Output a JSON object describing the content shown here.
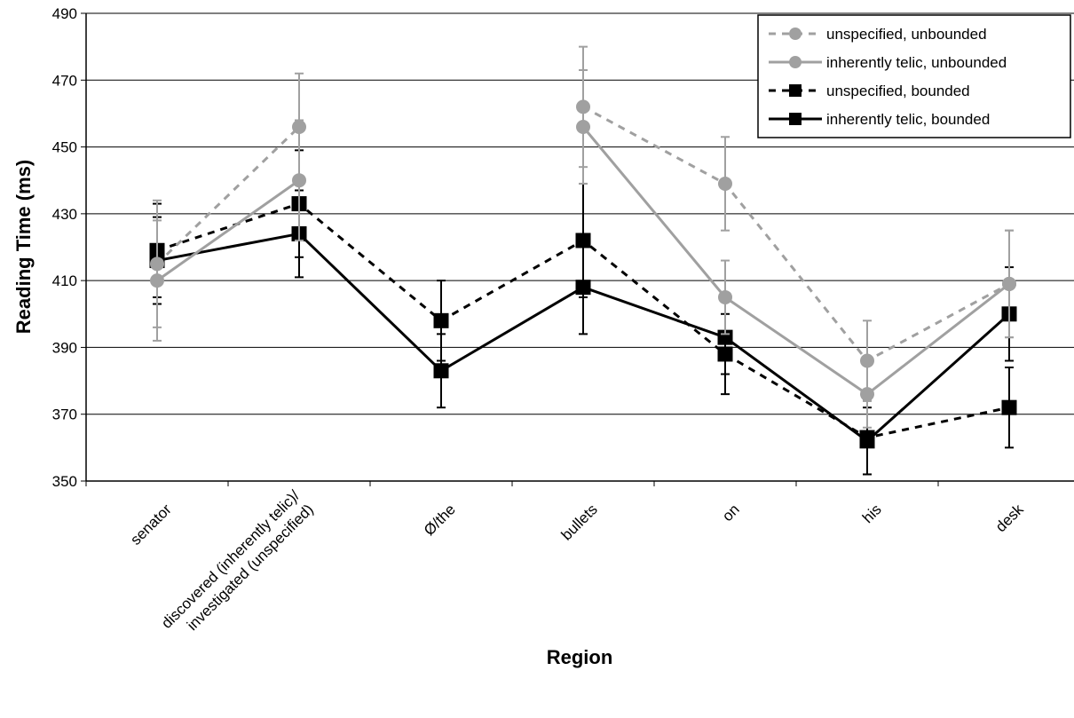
{
  "chart_data": {
    "type": "line",
    "title": "",
    "xlabel": "Region",
    "ylabel": "Reading Time (ms)",
    "ylim": [
      350,
      490
    ],
    "yticks": [
      350,
      370,
      390,
      410,
      430,
      450,
      470,
      490
    ],
    "grid": true,
    "legend_position": "top-right",
    "categories": [
      [
        "senator"
      ],
      [
        "discovered (inherently telic)/",
        "investigated (unspecified)"
      ],
      [
        "Ø/the"
      ],
      [
        "bullets"
      ],
      [
        "on"
      ],
      [
        "his"
      ],
      [
        "desk"
      ]
    ],
    "series": [
      {
        "name": "unspecified, unbounded",
        "color": "#a0a0a0",
        "dash": true,
        "marker": "circle",
        "values": [
          415,
          456,
          null,
          462,
          439,
          386,
          409
        ],
        "error": [
          19,
          16,
          null,
          18,
          14,
          12,
          16
        ]
      },
      {
        "name": "inherently telic, unbounded",
        "color": "#a0a0a0",
        "dash": false,
        "marker": "circle",
        "values": [
          410,
          440,
          null,
          456,
          405,
          376,
          409
        ],
        "error": [
          18,
          18,
          null,
          17,
          11,
          10,
          16
        ]
      },
      {
        "name": "unspecified, bounded",
        "color": "#000000",
        "dash": true,
        "marker": "square",
        "values": [
          419,
          433,
          398,
          422,
          388,
          363,
          372
        ],
        "error": [
          14,
          16,
          12,
          17,
          12,
          11,
          12
        ]
      },
      {
        "name": "inherently telic, bounded",
        "color": "#000000",
        "dash": false,
        "marker": "square",
        "values": [
          416,
          424,
          383,
          408,
          393,
          362,
          400
        ],
        "error": [
          13,
          13,
          11,
          14,
          11,
          10,
          14
        ]
      }
    ]
  }
}
